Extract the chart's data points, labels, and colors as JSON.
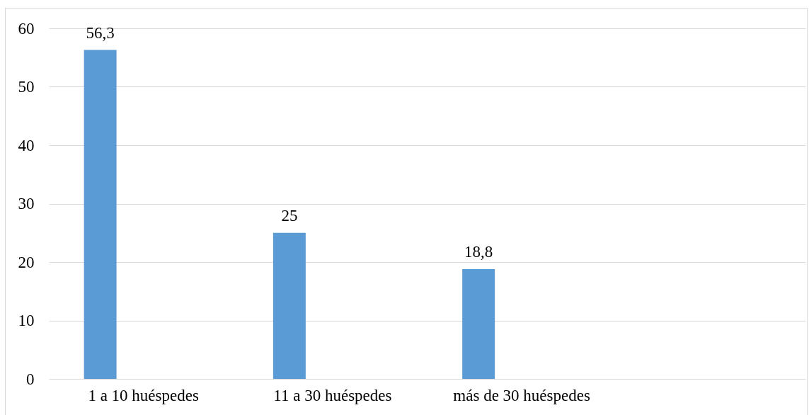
{
  "chart_data": {
    "type": "bar",
    "categories": [
      "1 a 10 huéspedes",
      "11 a 30 huéspedes",
      "más de 30 huéspedes",
      null
    ],
    "values": [
      56.3,
      25,
      18.8,
      null
    ],
    "value_labels": [
      "56,3",
      "25",
      "18,8",
      null
    ],
    "color": "#5b9bd5",
    "ylim": [
      0,
      60
    ],
    "yticks": [
      0,
      10,
      20,
      30,
      40,
      50,
      60
    ],
    "grid": "y"
  }
}
